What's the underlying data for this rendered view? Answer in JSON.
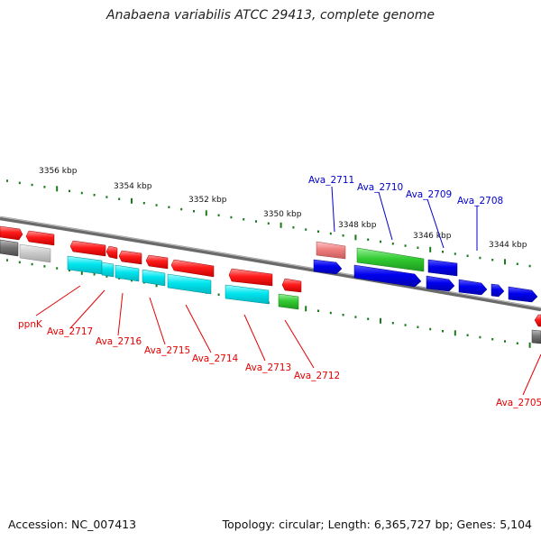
{
  "title": "Anabaena variabilis ATCC 29413, complete genome",
  "footer": {
    "accession": "Accession: NC_007413",
    "summary": "Topology: circular; Length: 6,365,727 bp; Genes: 5,104"
  },
  "scale_labels": [
    "3356 kbp",
    "3354 kbp",
    "3352 kbp",
    "3350 kbp",
    "3348 kbp",
    "3346 kbp",
    "3344 kbp"
  ],
  "gene_labels_forward": [
    "Ava_2711",
    "Ava_2710",
    "Ava_2709",
    "Ava_2708"
  ],
  "gene_labels_reverse": [
    "ppnK",
    "Ava_2717",
    "Ava_2716",
    "Ava_2715",
    "Ava_2714",
    "Ava_2713",
    "Ava_2712",
    "Ava_2705"
  ],
  "colors": {
    "red": "#ff1a1a",
    "blue": "#0000ee",
    "cyan": "#00e5ee",
    "green": "#33cc33",
    "salmon": "#f08080",
    "gray": "#777777",
    "silver": "#cccccc",
    "scale_green": "#1a7a1a",
    "label_red": "#e60000",
    "label_blue": "#0000cc"
  }
}
